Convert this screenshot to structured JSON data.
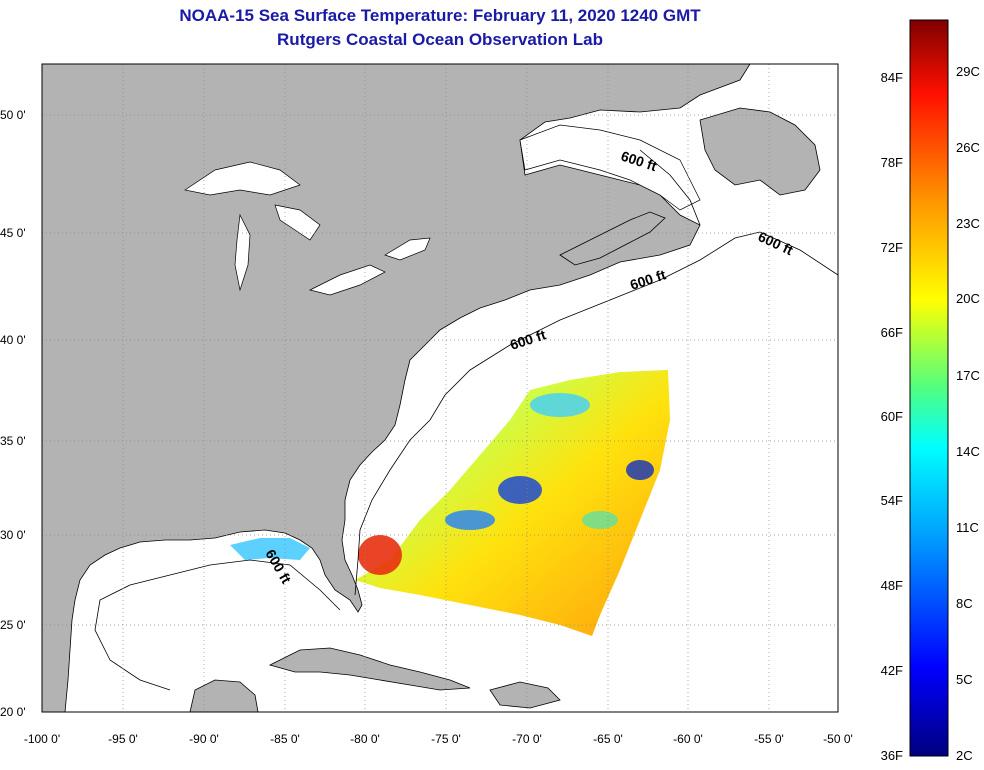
{
  "title": "NOAA-15 Sea Surface Temperature:  February 11, 2020 1240 GMT",
  "subtitle": "Rutgers Coastal Ocean Observation Lab",
  "lat_labels": [
    "50 0'",
    "45 0'",
    "40 0'",
    "35 0'",
    "30 0'",
    "25 0'",
    "20 0'"
  ],
  "lon_labels": [
    "-100 0'",
    "-95 0'",
    "-90 0'",
    "-85 0'",
    "-80 0'",
    "-75 0'",
    "-70 0'",
    "-65 0'",
    "-60 0'",
    "-55 0'",
    "-50 0'"
  ],
  "colorbar": {
    "fahrenheit_labels": [
      "84F",
      "78F",
      "72F",
      "66F",
      "60F",
      "54F",
      "48F",
      "42F",
      "36F"
    ],
    "celsius_labels": [
      "29C",
      "26C",
      "23C",
      "20C",
      "17C",
      "14C",
      "11C",
      "8C",
      "5C",
      "2C"
    ]
  },
  "contour_labels": [
    "600 ft",
    "600 ft",
    "600 ft",
    "600 ft",
    "600 ft"
  ],
  "colors": {
    "land": "#b3b3b3",
    "ocean": "#ffffff",
    "title": "#1a1aa6",
    "grid": "#888888"
  }
}
